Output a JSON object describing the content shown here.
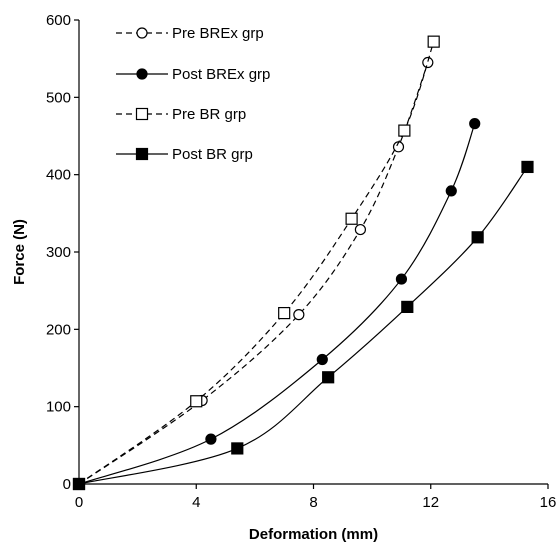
{
  "chart_data": {
    "type": "line",
    "xlabel": "Deformation (mm)",
    "ylabel": "Force (N)",
    "xlim": [
      0,
      16
    ],
    "ylim": [
      0,
      600
    ],
    "xticks": [
      0,
      4,
      8,
      12,
      16
    ],
    "yticks": [
      0,
      100,
      200,
      300,
      400,
      500,
      600
    ],
    "grid": false,
    "legend_position": "top-left",
    "series": [
      {
        "name": "Pre BREx grp",
        "line_style": "dashed",
        "marker": "circle-open",
        "points": [
          [
            0,
            0
          ],
          [
            4.2,
            108
          ],
          [
            7.5,
            219
          ],
          [
            9.6,
            329
          ],
          [
            10.9,
            436
          ],
          [
            11.9,
            545
          ]
        ]
      },
      {
        "name": "Post BREx grp",
        "line_style": "solid",
        "marker": "circle-filled",
        "points": [
          [
            0,
            0
          ],
          [
            4.5,
            58
          ],
          [
            8.3,
            161
          ],
          [
            11.0,
            265
          ],
          [
            12.7,
            379
          ],
          [
            13.5,
            466
          ]
        ]
      },
      {
        "name": "Pre BR grp",
        "line_style": "dashed",
        "marker": "square-open",
        "points": [
          [
            0,
            0
          ],
          [
            4.0,
            107
          ],
          [
            7.0,
            221
          ],
          [
            9.3,
            343
          ],
          [
            11.1,
            457
          ],
          [
            12.1,
            572
          ]
        ]
      },
      {
        "name": "Post BR grp",
        "line_style": "solid",
        "marker": "square-filled",
        "points": [
          [
            0,
            0
          ],
          [
            5.4,
            46
          ],
          [
            8.5,
            138
          ],
          [
            11.2,
            229
          ],
          [
            13.6,
            319
          ],
          [
            15.3,
            410
          ]
        ]
      }
    ]
  }
}
